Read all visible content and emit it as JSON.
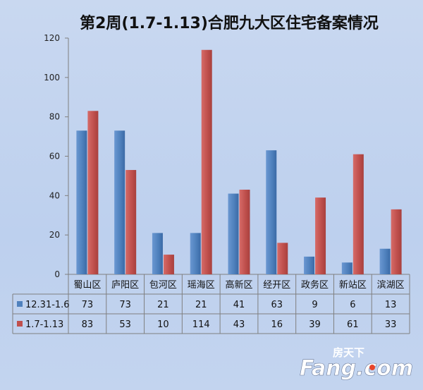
{
  "chart_data": {
    "type": "bar",
    "title": "第2周(1.7-1.13)合肥九大区住宅备案情况",
    "categories": [
      "蜀山区",
      "庐阳区",
      "包河区",
      "瑶海区",
      "高新区",
      "经开区",
      "政务区",
      "新站区",
      "滨湖区"
    ],
    "series": [
      {
        "name": "12.31-1.6",
        "color": "#4f81bd",
        "values": [
          73,
          73,
          21,
          21,
          41,
          63,
          9,
          6,
          13
        ]
      },
      {
        "name": "1.7-1.13",
        "color": "#c0504d",
        "values": [
          83,
          53,
          10,
          114,
          43,
          16,
          39,
          61,
          33
        ]
      }
    ],
    "ylim": [
      0,
      120
    ],
    "yticks": [
      0,
      20,
      40,
      60,
      80,
      100,
      120
    ],
    "grid": false,
    "legend": "data-table",
    "table_rows": [
      [
        "73",
        "73",
        "21",
        "21",
        "41",
        "63",
        "9",
        "6",
        "13"
      ],
      [
        "83",
        "53",
        "10",
        "114",
        "43",
        "16",
        "39",
        "61",
        "33"
      ]
    ]
  },
  "watermark": {
    "chinese": "房天下",
    "latin": "Fang.com",
    "accent_color": "#e8452b"
  }
}
